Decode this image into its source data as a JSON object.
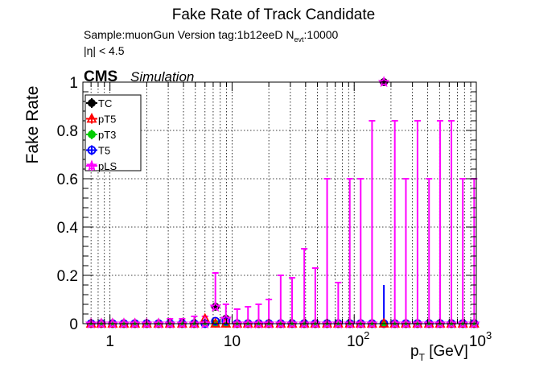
{
  "chart_data": {
    "type": "scatter",
    "title": "Fake Rate of Track Candidate",
    "info_line_1": "Sample:muonGun   Version tag:1b12eeD  N",
    "info_line_1_sub": "evt",
    "info_line_1_tail": ":10000",
    "info_line_2": "|η| < 4.5",
    "cms_label": "CMS",
    "cms_sublabel": "Simulation",
    "ylabel": "Fake Rate",
    "xlabel_main": "p",
    "xlabel_sub": "T",
    "xlabel_tail": " [GeV]",
    "xscale": "log",
    "xlim": [
      0.6,
      1000
    ],
    "ylim": [
      0,
      1
    ],
    "grid": true,
    "legend_position": "top-left",
    "x_tick_labels": [
      "1",
      "10",
      "10",
      "10"
    ],
    "x_tick_exponents": [
      "",
      "",
      "2",
      "3"
    ],
    "y_tick_labels": [
      "0",
      "0.2",
      "0.4",
      "0.6",
      "0.8",
      "1"
    ],
    "x": [
      0.7,
      0.85,
      1.05,
      1.3,
      1.6,
      2.0,
      2.5,
      3.1,
      3.9,
      4.9,
      6.0,
      7.3,
      8.9,
      11,
      13.5,
      16.5,
      20,
      25,
      31,
      39,
      48,
      60,
      74,
      92,
      113,
      140,
      175,
      215,
      265,
      330,
      410,
      505,
      625,
      775,
      960
    ],
    "series": [
      {
        "name": "TC",
        "color": "#000000",
        "marker": "filled-circle",
        "values": [
          0,
          0,
          0,
          0,
          0,
          0,
          0,
          0,
          0,
          0,
          0,
          0.07,
          0.02,
          0,
          0,
          0,
          0,
          0,
          0,
          0,
          0,
          0,
          0,
          0,
          0,
          0,
          1.0,
          0,
          0,
          0,
          0,
          0,
          0,
          0,
          0
        ]
      },
      {
        "name": "pT5",
        "color": "#ff0000",
        "marker": "open-triangle",
        "values": [
          0,
          0,
          0,
          0,
          0,
          0,
          0,
          0,
          0,
          0,
          0.02,
          0,
          0,
          0,
          0,
          0,
          0,
          0,
          0,
          0,
          0,
          0,
          0,
          0,
          0,
          0,
          0,
          0,
          0,
          0,
          0,
          0,
          0,
          0,
          0
        ]
      },
      {
        "name": "pT3",
        "color": "#00cc00",
        "marker": "filled-circle",
        "values": [
          0,
          0,
          0,
          0,
          0,
          0,
          0,
          0,
          0,
          0,
          0,
          0,
          0,
          0,
          0,
          0,
          0,
          0,
          0,
          0,
          0,
          0,
          0,
          0,
          0,
          0,
          0,
          0,
          0,
          0,
          0,
          0,
          0,
          0,
          0
        ]
      },
      {
        "name": "T5",
        "color": "#0000ff",
        "marker": "open-circle",
        "values": [
          0,
          0,
          0,
          0,
          0,
          0,
          0,
          0,
          0,
          0,
          0,
          0.01,
          0.01,
          0,
          0,
          0,
          0,
          0,
          0,
          0,
          0,
          0,
          0,
          0,
          0,
          0,
          0,
          0,
          0,
          0,
          0,
          0,
          0,
          0,
          0
        ]
      },
      {
        "name": "pLS",
        "color": "#ff00ff",
        "marker": "open-star",
        "values": [
          0,
          0,
          0,
          0,
          0,
          0,
          0,
          0,
          0,
          0,
          0,
          0.07,
          0.02,
          0,
          0,
          0,
          0,
          0,
          0,
          0,
          0,
          0,
          0,
          0,
          0,
          0,
          1.0,
          0,
          0,
          0,
          0,
          0,
          0,
          0,
          0
        ],
        "err_up": [
          0.01,
          0.01,
          0.01,
          0.01,
          0.01,
          0.01,
          0.01,
          0.02,
          0.02,
          0.03,
          0.03,
          0.14,
          0.06,
          0.06,
          0.07,
          0.08,
          0.1,
          0.2,
          0.19,
          0.31,
          0.23,
          0.6,
          0.17,
          0.6,
          0.6,
          0.84,
          1.0,
          0.84,
          0.6,
          0.84,
          0.6,
          0.84,
          0.84,
          0.6,
          0.6
        ]
      }
    ]
  }
}
